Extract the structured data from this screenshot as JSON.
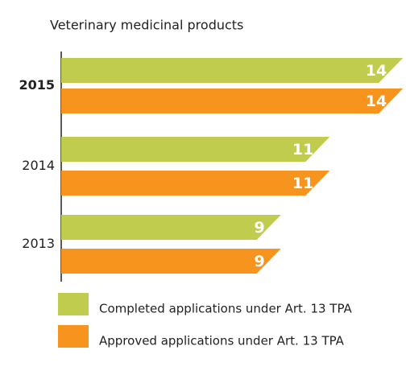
{
  "chart_data": {
    "type": "bar",
    "orientation": "horizontal",
    "title": "Veterinary medicinal products",
    "categories": [
      "2015",
      "2014",
      "2013"
    ],
    "series": [
      {
        "name": "Completed applications under Art. 13 TPA",
        "color": "#bfcc4e",
        "values": [
          14,
          11,
          9
        ]
      },
      {
        "name": "Approved applications under Art. 13 TPA",
        "color": "#f7941d",
        "values": [
          14,
          11,
          9
        ]
      }
    ]
  }
}
